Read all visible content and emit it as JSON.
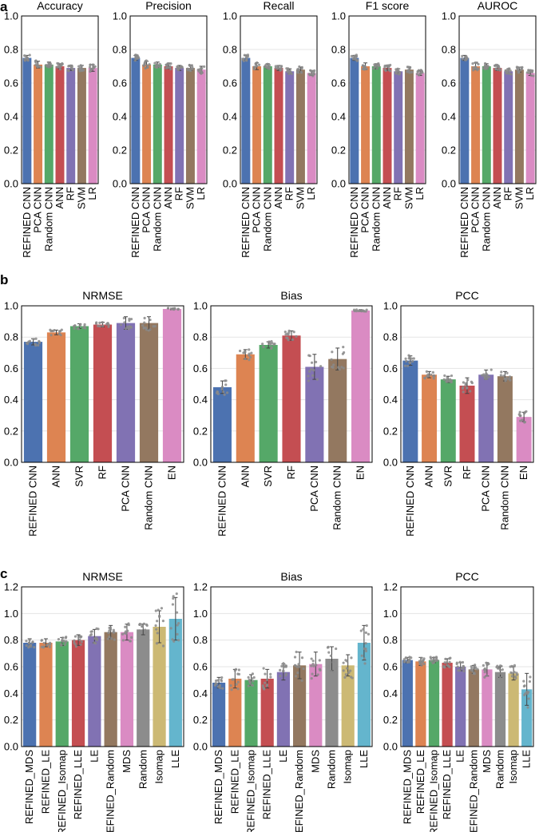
{
  "panel_letters": [
    "a",
    "b",
    "c"
  ],
  "colors": [
    "#4c72b0",
    "#dd8452",
    "#55a868",
    "#c44e52",
    "#8172b3",
    "#937860",
    "#da8bc3",
    "#8c8c8c",
    "#ccb974",
    "#64b5cd"
  ],
  "chart_data": [
    {
      "type": "bar",
      "panel": "a",
      "title": "Accuracy",
      "ylim": [
        0,
        1.0
      ],
      "yticks": [
        "0.0",
        "0.2",
        "0.4",
        "0.6",
        "0.8",
        "1.0"
      ],
      "grid": true,
      "categories": [
        "REFINED CNN",
        "PCA CNN",
        "Random CNN",
        "ANN",
        "RF",
        "SVM",
        "LR"
      ],
      "values": [
        0.75,
        0.71,
        0.71,
        0.7,
        0.69,
        0.69,
        0.69
      ],
      "errors": [
        0.015,
        0.02,
        0.015,
        0.015,
        0.015,
        0.015,
        0.02
      ]
    },
    {
      "type": "bar",
      "panel": "a",
      "title": "Precision",
      "ylim": [
        0,
        1.0
      ],
      "yticks": [
        "0.0",
        "0.2",
        "0.4",
        "0.6",
        "0.8",
        "1.0"
      ],
      "grid": true,
      "categories": [
        "REFINED CNN",
        "PCA CNN",
        "Random CNN",
        "ANN",
        "RF",
        "SVM",
        "LR"
      ],
      "values": [
        0.75,
        0.71,
        0.71,
        0.7,
        0.69,
        0.69,
        0.68
      ],
      "errors": [
        0.015,
        0.02,
        0.015,
        0.015,
        0.015,
        0.015,
        0.02
      ]
    },
    {
      "type": "bar",
      "panel": "a",
      "title": "Recall",
      "ylim": [
        0,
        1.0
      ],
      "yticks": [
        "0.0",
        "0.2",
        "0.4",
        "0.6",
        "0.8",
        "1.0"
      ],
      "grid": true,
      "categories": [
        "REFINED CNN",
        "PCA CNN",
        "Random CNN",
        "ANN",
        "RF",
        "SVM",
        "LR"
      ],
      "values": [
        0.75,
        0.7,
        0.7,
        0.69,
        0.67,
        0.68,
        0.66
      ],
      "errors": [
        0.015,
        0.02,
        0.015,
        0.015,
        0.015,
        0.015,
        0.015
      ]
    },
    {
      "type": "bar",
      "panel": "a",
      "title": "F1 score",
      "ylim": [
        0,
        1.0
      ],
      "yticks": [
        "0.0",
        "0.2",
        "0.4",
        "0.6",
        "0.8",
        "1.0"
      ],
      "grid": true,
      "categories": [
        "REFINED CNN",
        "PCA CNN",
        "Random CNN",
        "ANN",
        "RF",
        "SVM",
        "LR"
      ],
      "values": [
        0.75,
        0.7,
        0.7,
        0.69,
        0.67,
        0.68,
        0.66
      ],
      "errors": [
        0.015,
        0.02,
        0.015,
        0.015,
        0.015,
        0.015,
        0.015
      ]
    },
    {
      "type": "bar",
      "panel": "a",
      "title": "AUROC",
      "ylim": [
        0,
        1.0
      ],
      "yticks": [
        "0.0",
        "0.2",
        "0.4",
        "0.6",
        "0.8",
        "1.0"
      ],
      "grid": true,
      "categories": [
        "REFINED CNN",
        "PCA CNN",
        "Random CNN",
        "ANN",
        "RF",
        "SVM",
        "LR"
      ],
      "values": [
        0.75,
        0.7,
        0.7,
        0.69,
        0.67,
        0.68,
        0.66
      ],
      "errors": [
        0.015,
        0.02,
        0.015,
        0.015,
        0.015,
        0.015,
        0.015
      ]
    },
    {
      "type": "bar",
      "panel": "b",
      "title": "NRMSE",
      "ylim": [
        0,
        1.0
      ],
      "yticks": [
        "0.0",
        "0.2",
        "0.4",
        "0.6",
        "0.8",
        "1.0"
      ],
      "grid": true,
      "categories": [
        "REFINED CNN",
        "ANN",
        "SVR",
        "RF",
        "PCA CNN",
        "Random CNN",
        "EN"
      ],
      "values": [
        0.77,
        0.83,
        0.87,
        0.88,
        0.89,
        0.89,
        0.98
      ],
      "errors": [
        0.02,
        0.015,
        0.015,
        0.015,
        0.04,
        0.04,
        0.005
      ]
    },
    {
      "type": "bar",
      "panel": "b",
      "title": "Bias",
      "ylim": [
        0,
        1.0
      ],
      "yticks": [
        "0.0",
        "0.2",
        "0.4",
        "0.6",
        "0.8",
        "1.0"
      ],
      "grid": true,
      "categories": [
        "REFINED CNN",
        "ANN",
        "SVR",
        "RF",
        "PCA CNN",
        "Random CNN",
        "EN"
      ],
      "values": [
        0.48,
        0.69,
        0.75,
        0.81,
        0.61,
        0.66,
        0.97
      ],
      "errors": [
        0.04,
        0.03,
        0.02,
        0.03,
        0.08,
        0.07,
        0.005
      ]
    },
    {
      "type": "bar",
      "panel": "b",
      "title": "PCC",
      "ylim": [
        0,
        1.0
      ],
      "yticks": [
        "0.0",
        "0.2",
        "0.4",
        "0.6",
        "0.8",
        "1.0"
      ],
      "grid": true,
      "categories": [
        "REFINED CNN",
        "ANN",
        "SVR",
        "RF",
        "PCA CNN",
        "Random CNN",
        "EN"
      ],
      "values": [
        0.65,
        0.56,
        0.53,
        0.49,
        0.56,
        0.55,
        0.29
      ],
      "errors": [
        0.03,
        0.02,
        0.02,
        0.05,
        0.03,
        0.03,
        0.03
      ]
    },
    {
      "type": "bar",
      "panel": "c",
      "title": "NRMSE",
      "ylim": [
        0,
        1.2
      ],
      "yticks": [
        "0.0",
        "0.2",
        "0.4",
        "0.6",
        "0.8",
        "1.0",
        "1.2"
      ],
      "grid": true,
      "categories": [
        "REFINED_MDS",
        "REFINED_LE",
        "REFINED_Isomap",
        "REFINED_LLE",
        "LE",
        "REFINED_Random",
        "MDS",
        "Random",
        "Isomap",
        "LLE"
      ],
      "values": [
        0.78,
        0.78,
        0.79,
        0.8,
        0.83,
        0.86,
        0.86,
        0.88,
        0.9,
        0.96
      ],
      "errors": [
        0.03,
        0.03,
        0.03,
        0.04,
        0.05,
        0.05,
        0.06,
        0.04,
        0.12,
        0.16
      ]
    },
    {
      "type": "bar",
      "panel": "c",
      "title": "Bias",
      "ylim": [
        0,
        1.2
      ],
      "yticks": [
        "0.0",
        "0.2",
        "0.4",
        "0.6",
        "0.8",
        "1.0",
        "1.2"
      ],
      "grid": true,
      "categories": [
        "REFINED_MDS",
        "REFINED_LE",
        "REFINED_Isomap",
        "REFINED_LLE",
        "LE",
        "REFINED_Random",
        "MDS",
        "Random",
        "Isomap",
        "LLE"
      ],
      "values": [
        0.48,
        0.51,
        0.5,
        0.51,
        0.56,
        0.61,
        0.62,
        0.66,
        0.61,
        0.78
      ],
      "errors": [
        0.04,
        0.07,
        0.04,
        0.07,
        0.06,
        0.1,
        0.09,
        0.09,
        0.08,
        0.13
      ]
    },
    {
      "type": "bar",
      "panel": "c",
      "title": "PCC",
      "ylim": [
        0,
        1.2
      ],
      "yticks": [
        "0.0",
        "0.2",
        "0.4",
        "0.6",
        "0.8",
        "1.0",
        "1.2"
      ],
      "grid": true,
      "categories": [
        "REFINED_MDS",
        "REFINED_LE",
        "REFINED_Isomap",
        "REFINED_LLE",
        "LE",
        "REFINED_Random",
        "MDS",
        "Random",
        "Isomap",
        "LLE"
      ],
      "values": [
        0.65,
        0.64,
        0.65,
        0.63,
        0.6,
        0.58,
        0.58,
        0.56,
        0.55,
        0.43
      ],
      "errors": [
        0.02,
        0.03,
        0.02,
        0.03,
        0.03,
        0.03,
        0.05,
        0.04,
        0.05,
        0.12
      ]
    }
  ]
}
